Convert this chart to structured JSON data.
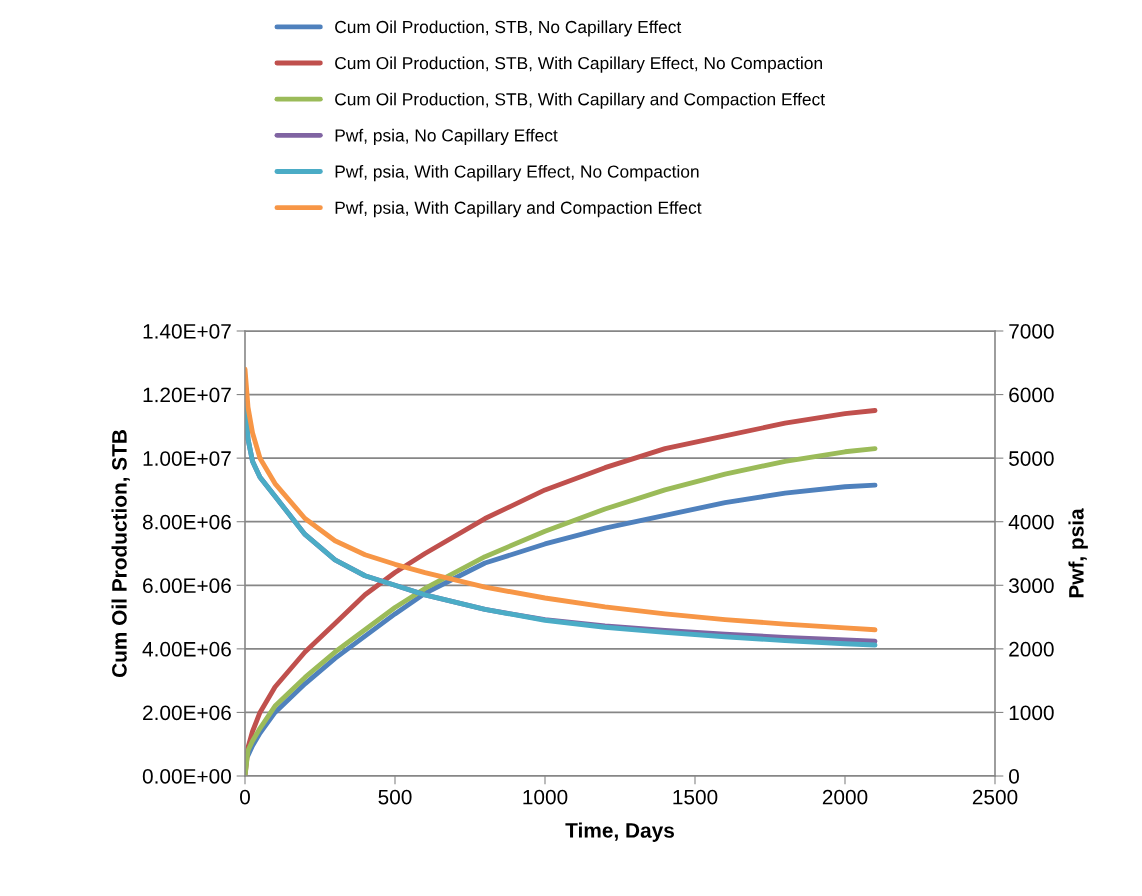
{
  "chart_data": {
    "type": "line",
    "xlabel": "Time, Days",
    "ylabel": "Cum Oil Production, STB",
    "y2label": "Pwf, psia",
    "x": [
      0,
      10,
      25,
      50,
      100,
      200,
      300,
      400,
      500,
      600,
      800,
      1000,
      1200,
      1400,
      1600,
      1800,
      2000,
      2100
    ],
    "series": [
      {
        "name": "Cum Oil Production, STB, No Capillary Effect",
        "color": "#4f81bd",
        "values": [
          null,
          650000,
          950000,
          1350000,
          2000000,
          2900000,
          3700000,
          4400000,
          5100000,
          5750000,
          6700000,
          7300000,
          7800000,
          8200000,
          8600000,
          8900000,
          9100000,
          9150000
        ]
      },
      {
        "name": "Cum Oil Production, STB, With Capillary Effect, No Compaction",
        "color": "#c0504d",
        "values": [
          0,
          900000,
          1400000,
          2000000,
          2800000,
          3900000,
          4800000,
          5700000,
          6400000,
          7000000,
          8100000,
          9000000,
          9700000,
          10300000,
          10700000,
          11100000,
          11400000,
          11500000
        ]
      },
      {
        "name": "Cum Oil Production, STB, With Capillary and Compaction Effect",
        "color": "#9bbb59",
        "values": [
          0,
          800000,
          1100000,
          1500000,
          2200000,
          3100000,
          3900000,
          4600000,
          5300000,
          5900000,
          6900000,
          7700000,
          8400000,
          9000000,
          9500000,
          9900000,
          10200000,
          10300000
        ]
      },
      {
        "name": "Pwf, psia, No Capillary Effect",
        "color": "#8064a2",
        "axis": "y2",
        "values": [
          6000,
          5300,
          4950,
          4700,
          4400,
          3800,
          3400,
          3150,
          3000,
          2850,
          2620,
          2460,
          2360,
          2290,
          2230,
          2180,
          2140,
          2120
        ]
      },
      {
        "name": "Pwf, psia, With Capillary Effect, No Compaction",
        "color": "#4bacc6",
        "axis": "y2",
        "values": [
          6000,
          5300,
          4950,
          4700,
          4400,
          3800,
          3400,
          3150,
          3000,
          2850,
          2620,
          2450,
          2340,
          2260,
          2190,
          2130,
          2080,
          2060
        ]
      },
      {
        "name": "Pwf, psia, With Capillary and Compaction Effect",
        "color": "#f79646",
        "axis": "y2",
        "values": [
          6400,
          5800,
          5400,
          5000,
          4600,
          4050,
          3700,
          3480,
          3330,
          3200,
          2970,
          2800,
          2660,
          2550,
          2460,
          2390,
          2330,
          2300
        ]
      }
    ],
    "xlim": [
      0,
      2500
    ],
    "xticks": [
      0,
      500,
      1000,
      1500,
      2000,
      2500
    ],
    "ylim": [
      0,
      14000000
    ],
    "yticks": [
      {
        "value": 0,
        "label": "0.00E+00"
      },
      {
        "value": 2000000,
        "label": "2.00E+06"
      },
      {
        "value": 4000000,
        "label": "4.00E+06"
      },
      {
        "value": 6000000,
        "label": "6.00E+06"
      },
      {
        "value": 8000000,
        "label": "8.00E+06"
      },
      {
        "value": 10000000,
        "label": "1.00E+07"
      },
      {
        "value": 12000000,
        "label": "1.20E+07"
      },
      {
        "value": 14000000,
        "label": "1.40E+07"
      }
    ],
    "y2lim": [
      0,
      7000
    ],
    "y2ticks": [
      0,
      1000,
      2000,
      3000,
      4000,
      5000,
      6000,
      7000
    ],
    "grid": "y",
    "legend": "top",
    "marker": "none",
    "line_style": "solid"
  }
}
